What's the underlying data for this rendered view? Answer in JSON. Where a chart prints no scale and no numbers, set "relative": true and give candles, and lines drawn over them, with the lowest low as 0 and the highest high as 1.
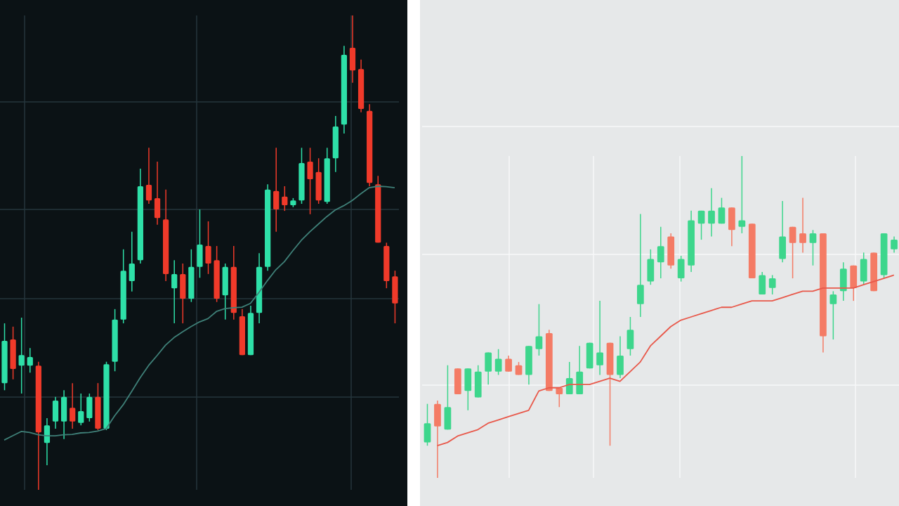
{
  "chart_data": [
    {
      "type": "candlestick",
      "relative": true,
      "grid": true,
      "categories": [
        null,
        null,
        null,
        null,
        null,
        null,
        null,
        null,
        null,
        null,
        null,
        null,
        null,
        null,
        null,
        null,
        null,
        null,
        null,
        null,
        null,
        null,
        null,
        null,
        null,
        null,
        null,
        null,
        null,
        null,
        null,
        null,
        null,
        null,
        null,
        null,
        null,
        null,
        null,
        null,
        null,
        null,
        null,
        null,
        null,
        null,
        null
      ],
      "ohlc": [
        [
          0.225,
          0.351,
          0.21,
          0.314
        ],
        [
          0.317,
          0.344,
          0.233,
          0.255
        ],
        [
          0.262,
          0.363,
          0.203,
          0.284
        ],
        [
          0.262,
          0.299,
          0.247,
          0.28
        ],
        [
          0.262,
          0.27,
          0,
          0.121
        ],
        [
          0.099,
          0.151,
          0.052,
          0.136
        ],
        [
          0.144,
          0.196,
          0.129,
          0.188
        ],
        [
          0.144,
          0.21,
          0.107,
          0.196
        ],
        [
          0.173,
          0.225,
          0.129,
          0.144
        ],
        [
          0.141,
          0.203,
          0.136,
          0.166
        ],
        [
          0.151,
          0.203,
          0.144,
          0.196
        ],
        [
          0.196,
          0.225,
          0.126,
          0.129
        ],
        [
          0.129,
          0.27,
          0.126,
          0.265
        ],
        [
          0.27,
          0.381,
          0.25,
          0.359
        ],
        [
          0.359,
          0.507,
          0.351,
          0.462
        ],
        [
          0.44,
          0.544,
          0.418,
          0.477
        ],
        [
          0.484,
          0.677,
          0.477,
          0.64
        ],
        [
          0.643,
          0.721,
          0.603,
          0.61
        ],
        [
          0.615,
          0.692,
          0.559,
          0.573
        ],
        [
          0.57,
          0.633,
          0.44,
          0.455
        ],
        [
          0.425,
          0.484,
          0.351,
          0.455
        ],
        [
          0.455,
          0.477,
          0.351,
          0.403
        ],
        [
          0.403,
          0.507,
          0.396,
          0.47
        ],
        [
          0.47,
          0.591,
          0.447,
          0.517
        ],
        [
          0.514,
          0.566,
          0.455,
          0.477
        ],
        [
          0.484,
          0.514,
          0.396,
          0.403
        ],
        [
          0.41,
          0.477,
          0.359,
          0.47
        ],
        [
          0.47,
          0.514,
          0.359,
          0.373
        ],
        [
          0.366,
          0.381,
          0.284,
          0.284
        ],
        [
          0.284,
          0.388,
          0.284,
          0.373
        ],
        [
          0.373,
          0.499,
          0.351,
          0.47
        ],
        [
          0.47,
          0.644,
          0.462,
          0.633
        ],
        [
          0.63,
          0.721,
          0.544,
          0.591
        ],
        [
          0.618,
          0.64,
          0.588,
          0.6
        ],
        [
          0.6,
          0.615,
          0.596,
          0.61
        ],
        [
          0.61,
          0.721,
          0.603,
          0.689
        ],
        [
          0.692,
          0.721,
          0.581,
          0.655
        ],
        [
          0.67,
          0.699,
          0.603,
          0.61
        ],
        [
          0.607,
          0.721,
          0.603,
          0.699
        ],
        [
          0.699,
          0.788,
          0.67,
          0.766
        ],
        [
          0.77,
          0.936,
          0.751,
          0.917
        ],
        [
          0.932,
          1,
          0.858,
          0.884
        ],
        [
          0.887,
          0.907,
          0.796,
          0.803
        ],
        [
          0.799,
          0.813,
          0.64,
          0.647
        ],
        [
          0.644,
          0.662,
          0.521,
          0.521
        ],
        [
          0.514,
          0.521,
          0.425,
          0.44
        ],
        [
          0.45,
          0.462,
          0.351,
          0.393
        ]
      ],
      "colors": [
        "#2ee0a8",
        "#f03a2a",
        "#2ee0a8",
        "#2ee0a8",
        "#f03a2a",
        "#2ee0a8",
        "#2ee0a8",
        "#2ee0a8",
        "#f03a2a",
        "#2ee0a8",
        "#2ee0a8",
        "#f03a2a",
        "#2ee0a8",
        "#2ee0a8",
        "#2ee0a8",
        "#2ee0a8",
        "#2ee0a8",
        "#f03a2a",
        "#f03a2a",
        "#f03a2a",
        "#2ee0a8",
        "#f03a2a",
        "#2ee0a8",
        "#2ee0a8",
        "#f03a2a",
        "#f03a2a",
        "#2ee0a8",
        "#f03a2a",
        "#f03a2a",
        "#2ee0a8",
        "#2ee0a8",
        "#2ee0a8",
        "#f03a2a",
        "#f03a2a",
        "#2ee0a8",
        "#2ee0a8",
        "#f03a2a",
        "#f03a2a",
        "#2ee0a8",
        "#2ee0a8",
        "#2ee0a8",
        "#f03a2a",
        "#f03a2a",
        "#f03a2a",
        "#f03a2a",
        "#f03a2a",
        "#f03a2a"
      ],
      "series": [
        {
          "type": "line",
          "color": "#3f8078",
          "values": [
            0.105,
            0.114,
            0.123,
            0.121,
            0.116,
            0.114,
            0.114,
            0.116,
            0.117,
            0.12,
            0.121,
            0.124,
            0.129,
            0.156,
            0.179,
            0.207,
            0.236,
            0.262,
            0.283,
            0.305,
            0.321,
            0.333,
            0.344,
            0.354,
            0.361,
            0.376,
            0.382,
            0.384,
            0.385,
            0.393,
            0.416,
            0.441,
            0.464,
            0.481,
            0.504,
            0.526,
            0.544,
            0.56,
            0.576,
            0.59,
            0.599,
            0.61,
            0.624,
            0.637,
            0.64,
            0.639,
            0.637
          ]
        }
      ]
    },
    {
      "type": "candlestick",
      "relative": true,
      "grid": true,
      "categories": [
        null,
        null,
        null,
        null,
        null,
        null,
        null,
        null,
        null,
        null,
        null,
        null,
        null,
        null,
        null,
        null,
        null,
        null,
        null,
        null,
        null,
        null,
        null,
        null,
        null,
        null,
        null,
        null,
        null,
        null,
        null,
        null,
        null,
        null,
        null,
        null,
        null,
        null,
        null,
        null,
        null,
        null,
        null,
        null,
        null,
        null,
        null
      ],
      "ohlc": [
        [
          0.11,
          0.23,
          0.1,
          0.17
        ],
        [
          0.23,
          0.24,
          0,
          0.16
        ],
        [
          0.15,
          0.35,
          0.15,
          0.22
        ],
        [
          0.34,
          0.34,
          0.26,
          0.26
        ],
        [
          0.27,
          0.34,
          0.21,
          0.34
        ],
        [
          0.25,
          0.35,
          0.25,
          0.33
        ],
        [
          0.33,
          0.39,
          0.29,
          0.39
        ],
        [
          0.33,
          0.4,
          0.32,
          0.37
        ],
        [
          0.37,
          0.38,
          0.33,
          0.33
        ],
        [
          0.35,
          0.36,
          0.32,
          0.32
        ],
        [
          0.32,
          0.41,
          0.29,
          0.41
        ],
        [
          0.4,
          0.54,
          0.38,
          0.44
        ],
        [
          0.45,
          0.46,
          0.27,
          0.27
        ],
        [
          0.28,
          0.28,
          0.22,
          0.26
        ],
        [
          0.26,
          0.36,
          0.26,
          0.31
        ],
        [
          0.26,
          0.41,
          0.26,
          0.33
        ],
        [
          0.34,
          0.42,
          0.34,
          0.42
        ],
        [
          0.35,
          0.55,
          0.32,
          0.39
        ],
        [
          0.42,
          0.42,
          0.1,
          0.32
        ],
        [
          0.32,
          0.44,
          0.31,
          0.38
        ],
        [
          0.4,
          0.5,
          0.38,
          0.46
        ],
        [
          0.54,
          0.82,
          0.5,
          0.6
        ],
        [
          0.61,
          0.71,
          0.6,
          0.68
        ],
        [
          0.67,
          0.78,
          0.62,
          0.72
        ],
        [
          0.75,
          0.76,
          0.65,
          0.66
        ],
        [
          0.62,
          0.69,
          0.61,
          0.68
        ],
        [
          0.66,
          0.83,
          0.64,
          0.8
        ],
        [
          0.79,
          0.83,
          0.74,
          0.83
        ],
        [
          0.79,
          0.9,
          0.75,
          0.83
        ],
        [
          0.79,
          0.87,
          0.79,
          0.84
        ],
        [
          0.84,
          0.84,
          0.72,
          0.77
        ],
        [
          0.78,
          1,
          0.76,
          0.8
        ],
        [
          0.79,
          0.79,
          0.62,
          0.62
        ],
        [
          0.57,
          0.64,
          0.57,
          0.63
        ],
        [
          0.59,
          0.63,
          0.57,
          0.62
        ],
        [
          0.68,
          0.86,
          0.67,
          0.75
        ],
        [
          0.78,
          0.78,
          0.62,
          0.73
        ],
        [
          0.76,
          0.87,
          0.7,
          0.73
        ],
        [
          0.73,
          0.77,
          0.66,
          0.76
        ],
        [
          0.76,
          0.76,
          0.39,
          0.44
        ],
        [
          0.54,
          0.58,
          0.43,
          0.57
        ],
        [
          0.58,
          0.67,
          0.55,
          0.65
        ],
        [
          0.66,
          0.66,
          0.55,
          0.59
        ],
        [
          0.61,
          0.7,
          0.6,
          0.68
        ],
        [
          0.7,
          0.7,
          0.58,
          0.58
        ],
        [
          0.63,
          0.76,
          0.62,
          0.76
        ],
        [
          0.71,
          0.75,
          0.7,
          0.74
        ]
      ],
      "colors": [
        "#3dd68c",
        "#f47b65",
        "#3dd68c",
        "#f47b65",
        "#3dd68c",
        "#3dd68c",
        "#3dd68c",
        "#3dd68c",
        "#f47b65",
        "#f47b65",
        "#3dd68c",
        "#3dd68c",
        "#f47b65",
        "#f47b65",
        "#3dd68c",
        "#3dd68c",
        "#3dd68c",
        "#3dd68c",
        "#f47b65",
        "#3dd68c",
        "#3dd68c",
        "#3dd68c",
        "#3dd68c",
        "#3dd68c",
        "#f47b65",
        "#3dd68c",
        "#3dd68c",
        "#3dd68c",
        "#3dd68c",
        "#3dd68c",
        "#f47b65",
        "#3dd68c",
        "#f47b65",
        "#3dd68c",
        "#3dd68c",
        "#3dd68c",
        "#f47b65",
        "#f47b65",
        "#3dd68c",
        "#f47b65",
        "#3dd68c",
        "#3dd68c",
        "#f47b65",
        "#3dd68c",
        "#f47b65",
        "#3dd68c",
        "#3dd68c"
      ],
      "series": [
        {
          "type": "line",
          "color": "#e8584a",
          "values": [
            null,
            0.1,
            0.11,
            0.13,
            0.14,
            0.15,
            0.17,
            0.18,
            0.19,
            0.2,
            0.21,
            0.27,
            0.28,
            0.28,
            0.29,
            0.29,
            0.29,
            0.3,
            0.31,
            0.3,
            0.33,
            0.36,
            0.41,
            0.44,
            0.47,
            0.49,
            0.5,
            0.51,
            0.52,
            0.53,
            0.53,
            0.54,
            0.55,
            0.55,
            0.55,
            0.56,
            0.57,
            0.58,
            0.58,
            0.59,
            0.59,
            0.59,
            0.59,
            0.6,
            0.61,
            0.62,
            0.63
          ]
        }
      ]
    }
  ]
}
